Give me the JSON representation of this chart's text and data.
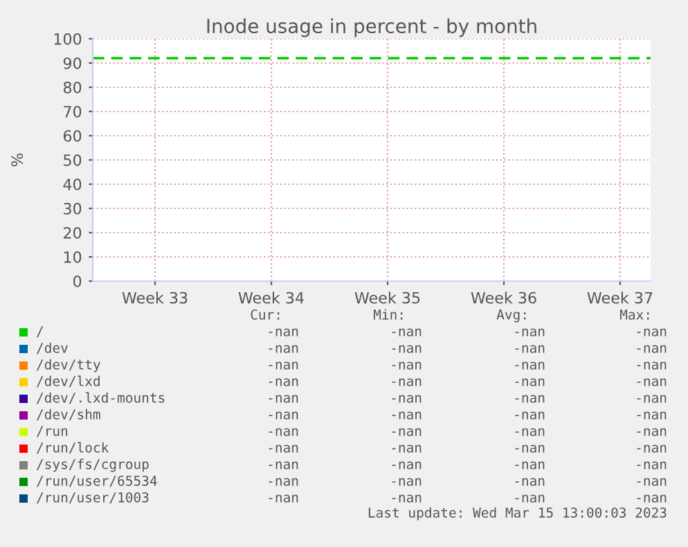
{
  "chart_data": {
    "type": "line",
    "title": "Inode usage in percent - by month",
    "ylabel": "%",
    "categories": [
      "Week 33",
      "Week 34",
      "Week 35",
      "Week 36",
      "Week 37"
    ],
    "ylim": [
      0,
      100
    ],
    "yticks": [
      0,
      10,
      20,
      30,
      40,
      50,
      60,
      70,
      80,
      90,
      100
    ],
    "grid": true,
    "legend": "bottom",
    "ref_lines": [
      {
        "axis": "y",
        "value": 92,
        "color": "#00cc00",
        "line_style": "dashed"
      }
    ],
    "series": [
      {
        "name": "/",
        "color": "#00cc00",
        "values": [
          null,
          null,
          null,
          null,
          null
        ]
      },
      {
        "name": "/dev",
        "color": "#0066b3",
        "values": [
          null,
          null,
          null,
          null,
          null
        ]
      },
      {
        "name": "/dev/tty",
        "color": "#ff8000",
        "values": [
          null,
          null,
          null,
          null,
          null
        ]
      },
      {
        "name": "/dev/lxd",
        "color": "#ffcc00",
        "values": [
          null,
          null,
          null,
          null,
          null
        ]
      },
      {
        "name": "/dev/.lxd-mounts",
        "color": "#330099",
        "values": [
          null,
          null,
          null,
          null,
          null
        ]
      },
      {
        "name": "/dev/shm",
        "color": "#990099",
        "values": [
          null,
          null,
          null,
          null,
          null
        ]
      },
      {
        "name": "/run",
        "color": "#ccff00",
        "values": [
          null,
          null,
          null,
          null,
          null
        ]
      },
      {
        "name": "/run/lock",
        "color": "#ff0000",
        "values": [
          null,
          null,
          null,
          null,
          null
        ]
      },
      {
        "name": "/sys/fs/cgroup",
        "color": "#808080",
        "values": [
          null,
          null,
          null,
          null,
          null
        ]
      },
      {
        "name": "/run/user/65534",
        "color": "#008f00",
        "values": [
          null,
          null,
          null,
          null,
          null
        ]
      },
      {
        "name": "/run/user/1003",
        "color": "#00487d",
        "values": [
          null,
          null,
          null,
          null,
          null
        ]
      }
    ],
    "annotations": [
      "Cur:",
      "Min:",
      "Avg:",
      "Max:",
      "-nan",
      "-nan",
      "-nan",
      "-nan",
      "-nan",
      "-nan",
      "-nan",
      "-nan",
      "-nan",
      "-nan",
      "-nan",
      "-nan",
      "-nan",
      "-nan",
      "-nan",
      "-nan",
      "-nan",
      "-nan",
      "-nan",
      "-nan",
      "-nan",
      "-nan",
      "-nan",
      "-nan",
      "-nan",
      "-nan",
      "-nan",
      "-nan",
      "-nan",
      "-nan",
      "-nan",
      "-nan",
      "-nan",
      "-nan",
      "-nan",
      "-nan",
      "-nan",
      "-nan",
      "-nan",
      "-nan",
      "-nan",
      "-nan",
      "-nan",
      "-nan",
      "Last update: Wed Mar 15 13:00:03 2023"
    ]
  }
}
